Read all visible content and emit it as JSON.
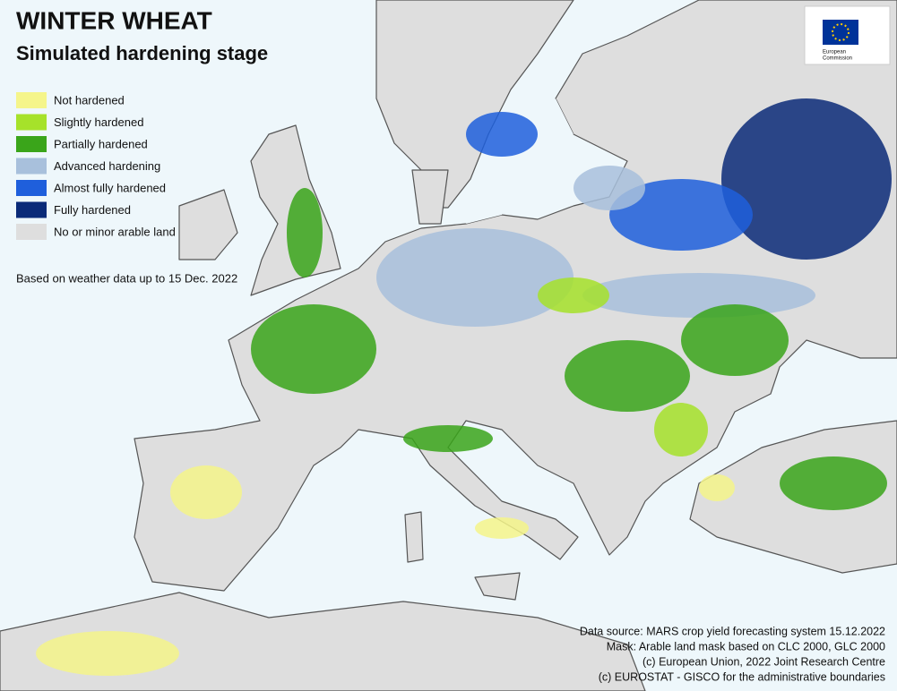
{
  "header": {
    "title": "WINTER WHEAT",
    "subtitle": "Simulated hardening stage"
  },
  "legend": {
    "items": [
      {
        "label": "Not hardened",
        "color": "#f5f58a"
      },
      {
        "label": "Slightly hardened",
        "color": "#a6e22a"
      },
      {
        "label": "Partially hardened",
        "color": "#3aa51a"
      },
      {
        "label": "Advanced hardening",
        "color": "#a8c0dc"
      },
      {
        "label": "Almost fully hardened",
        "color": "#1f5fdc"
      },
      {
        "label": "Fully hardened",
        "color": "#0a2a78"
      },
      {
        "label": "No or minor arable land",
        "color": "#dedede"
      }
    ]
  },
  "note": "Based on weather data up to 15 Dec. 2022",
  "sources": [
    "Data source: MARS crop yield forecasting system 15.12.2022",
    "Mask: Arable land mask based on CLC 2000, GLC 2000",
    "(c) European Union, 2022 Joint Research Centre",
    "(c) EUROSTAT - GISCO for the administrative boundaries"
  ],
  "logo": {
    "lines": [
      "European",
      "Commission"
    ]
  }
}
